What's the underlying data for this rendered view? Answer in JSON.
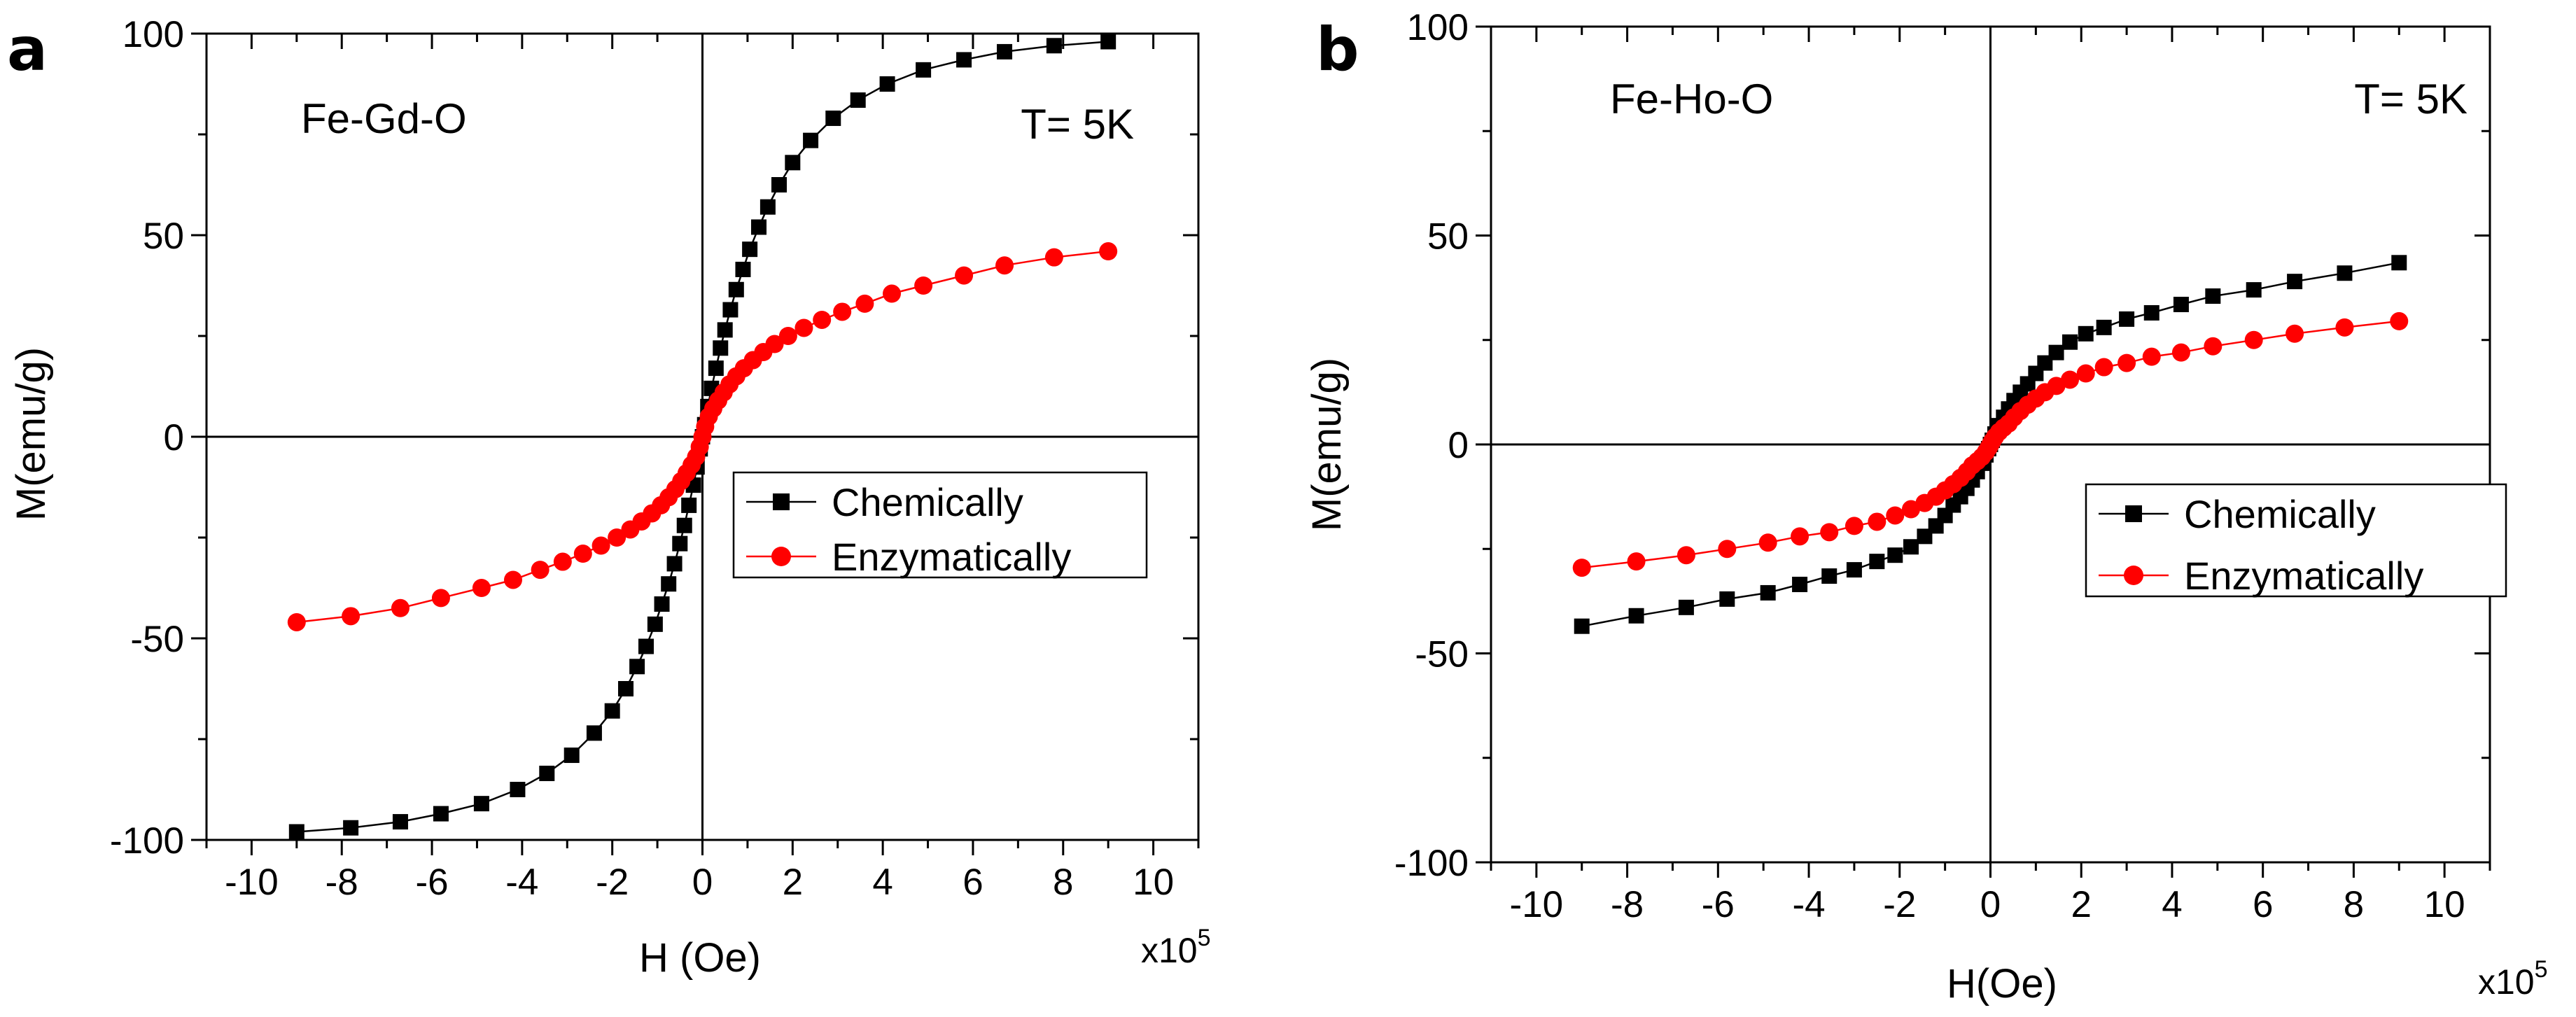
{
  "chart_data": [
    {
      "panel_label": "a",
      "type": "scatter",
      "subtitle": "Fe-Gd-O",
      "temperature_label": "T= 5K",
      "xlabel": "H (Oe)",
      "x_multiplier_base": "x10",
      "x_multiplier_exp": "5",
      "ylabel": "M(emu/g)",
      "xlim": [
        -11,
        11
      ],
      "ylim": [
        -100,
        100
      ],
      "xticks": [
        -10,
        -8,
        -6,
        -4,
        -2,
        0,
        2,
        4,
        6,
        8,
        10
      ],
      "yticks": [
        -100,
        -50,
        0,
        50,
        100
      ],
      "legend_position": "center-right",
      "series": [
        {
          "name": "Chemically",
          "marker": "square",
          "color": "#000000",
          "x": [
            -9,
            -7.8,
            -6.7,
            -5.8,
            -4.9,
            -4.1,
            -3.45,
            -2.9,
            -2.4,
            -2.0,
            -1.7,
            -1.45,
            -1.25,
            -1.05,
            -0.9,
            -0.75,
            -0.62,
            -0.5,
            -0.4,
            -0.3,
            -0.2,
            -0.12,
            -0.05,
            0,
            0.05,
            0.12,
            0.2,
            0.3,
            0.4,
            0.5,
            0.62,
            0.75,
            0.9,
            1.05,
            1.25,
            1.45,
            1.7,
            2.0,
            2.4,
            2.9,
            3.45,
            4.1,
            4.9,
            5.8,
            6.7,
            7.8,
            9
          ],
          "y": [
            -98,
            -97,
            -95.5,
            -93.5,
            -91,
            -87.5,
            -83.5,
            -79,
            -73.5,
            -68,
            -62.5,
            -57,
            -52,
            -46.5,
            -41.5,
            -36.5,
            -31.5,
            -26.5,
            -22,
            -17,
            -12,
            -7.5,
            -3,
            0,
            3,
            7.5,
            12,
            17,
            22,
            26.5,
            31.5,
            36.5,
            41.5,
            46.5,
            52,
            57,
            62.5,
            68,
            73.5,
            79,
            83.5,
            87.5,
            91,
            93.5,
            95.5,
            97,
            98
          ]
        },
        {
          "name": "Enzymatically",
          "marker": "circle",
          "color": "#ff0000",
          "x": [
            -9,
            -7.8,
            -6.7,
            -5.8,
            -4.9,
            -4.2,
            -3.6,
            -3.1,
            -2.65,
            -2.25,
            -1.9,
            -1.6,
            -1.35,
            -1.12,
            -0.92,
            -0.75,
            -0.6,
            -0.47,
            -0.35,
            -0.24,
            -0.14,
            -0.06,
            0,
            0.06,
            0.14,
            0.24,
            0.35,
            0.47,
            0.6,
            0.75,
            0.92,
            1.12,
            1.35,
            1.6,
            1.9,
            2.25,
            2.65,
            3.1,
            3.6,
            4.2,
            4.9,
            5.8,
            6.7,
            7.8,
            9
          ],
          "y": [
            -46,
            -44.5,
            -42.5,
            -40,
            -37.5,
            -35.5,
            -33,
            -31,
            -29,
            -27,
            -25,
            -23,
            -21,
            -19,
            -17,
            -15,
            -13,
            -11,
            -9,
            -7,
            -5,
            -2.5,
            0,
            2.5,
            5,
            7,
            9,
            11,
            13,
            15,
            17,
            19,
            21,
            23,
            25,
            27,
            29,
            31,
            33,
            35.5,
            37.5,
            40,
            42.5,
            44.5,
            46
          ]
        }
      ]
    },
    {
      "panel_label": "b",
      "type": "scatter",
      "subtitle": "Fe-Ho-O",
      "temperature_label": "T= 5K",
      "xlabel": "H(Oe)",
      "x_multiplier_base": "x10",
      "x_multiplier_exp": "5",
      "ylabel": "M(emu/g)",
      "xlim": [
        -11,
        11
      ],
      "ylim": [
        -100,
        100
      ],
      "xticks": [
        -10,
        -8,
        -6,
        -4,
        -2,
        0,
        2,
        4,
        6,
        8,
        10
      ],
      "yticks": [
        -100,
        -50,
        0,
        50,
        100
      ],
      "legend_position": "center-right",
      "series": [
        {
          "name": "Chemically",
          "marker": "square",
          "color": "#000000",
          "x": [
            -9,
            -7.8,
            -6.7,
            -5.8,
            -4.9,
            -4.2,
            -3.55,
            -3.0,
            -2.5,
            -2.1,
            -1.75,
            -1.45,
            -1.2,
            -1.0,
            -0.82,
            -0.66,
            -0.52,
            -0.4,
            -0.29,
            -0.19,
            -0.1,
            -0.04,
            0,
            0.04,
            0.1,
            0.19,
            0.29,
            0.4,
            0.52,
            0.66,
            0.82,
            1.0,
            1.2,
            1.45,
            1.75,
            2.1,
            2.5,
            3.0,
            3.55,
            4.2,
            4.9,
            5.8,
            6.7,
            7.8,
            9
          ],
          "y": [
            -43.5,
            -41,
            -39,
            -37,
            -35.5,
            -33.5,
            -31.5,
            -30,
            -28,
            -26.5,
            -24.5,
            -22,
            -19.5,
            -17,
            -14.5,
            -12.5,
            -10.5,
            -8.5,
            -6.5,
            -4.5,
            -2.5,
            -1,
            0,
            1,
            2.5,
            4.5,
            6.5,
            8.5,
            10.5,
            12.5,
            14.5,
            17,
            19.5,
            22,
            24.5,
            26.5,
            28,
            30,
            31.5,
            33.5,
            35.5,
            37,
            39,
            41,
            43.5
          ]
        },
        {
          "name": "Enzymatically",
          "marker": "circle",
          "color": "#ff0000",
          "x": [
            -9,
            -7.8,
            -6.7,
            -5.8,
            -4.9,
            -4.2,
            -3.55,
            -3.0,
            -2.5,
            -2.1,
            -1.75,
            -1.45,
            -1.2,
            -1.0,
            -0.82,
            -0.66,
            -0.52,
            -0.4,
            -0.29,
            -0.19,
            -0.1,
            -0.04,
            0,
            0.04,
            0.1,
            0.19,
            0.29,
            0.4,
            0.52,
            0.66,
            0.82,
            1.0,
            1.2,
            1.45,
            1.75,
            2.1,
            2.5,
            3.0,
            3.55,
            4.2,
            4.9,
            5.8,
            6.7,
            7.8,
            9
          ],
          "y": [
            -29.5,
            -28,
            -26.5,
            -25,
            -23.5,
            -22,
            -21,
            -19.5,
            -18.5,
            -17,
            -15.5,
            -14,
            -12.5,
            -11,
            -9.5,
            -8,
            -6.5,
            -5,
            -4,
            -3,
            -1.8,
            -0.8,
            0,
            0.8,
            1.8,
            3,
            4,
            5,
            6.5,
            8,
            9.5,
            11,
            12.5,
            14,
            15.5,
            17,
            18.5,
            19.5,
            21,
            22,
            23.5,
            25,
            26.5,
            28,
            29.5
          ]
        }
      ]
    }
  ]
}
